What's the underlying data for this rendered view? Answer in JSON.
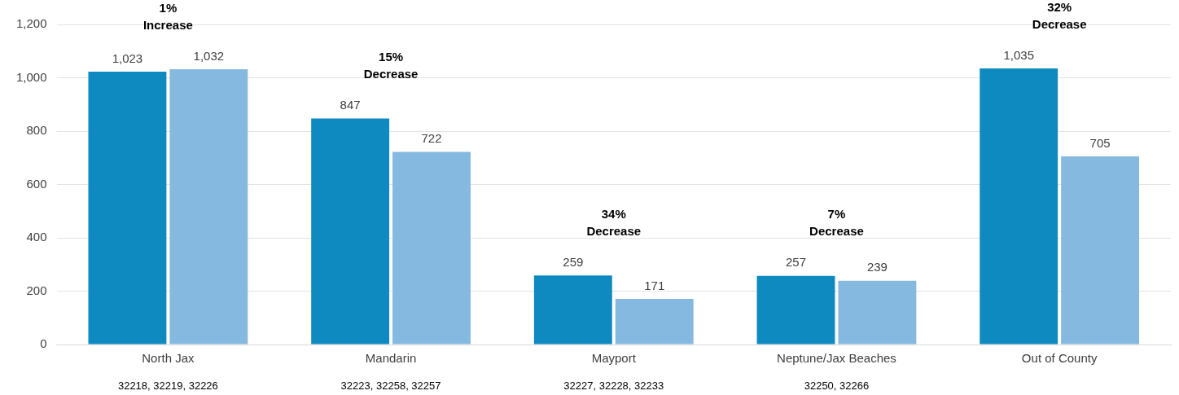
{
  "chart_data": {
    "type": "bar",
    "categories": [
      "North Jax",
      "Mandarin",
      "Mayport",
      "Neptune/Jax Beaches",
      "Out of County"
    ],
    "series": [
      {
        "color": "#0e8ac0",
        "values": [
          1023,
          847,
          259,
          257,
          1035
        ],
        "value_labels": [
          "1,023",
          "847",
          "259",
          "257",
          "1,035"
        ]
      },
      {
        "color": "#86b9df",
        "values": [
          1032,
          722,
          171,
          239,
          705
        ],
        "value_labels": [
          "1,032",
          "722",
          "171",
          "239",
          "705"
        ]
      }
    ],
    "ylim": [
      0,
      1200
    ],
    "yticks": [
      0,
      200,
      400,
      600,
      800,
      {
        "value": 1000,
        "label": "1,000"
      },
      {
        "value": 1200,
        "label": "1,200"
      }
    ],
    "grid": "y",
    "legend": false,
    "annotations": [
      "1%\nIncrease",
      "15%\nDecrease",
      "34%\nDecrease",
      "7%\nDecrease",
      "32%\nDecrease",
      "32218, 32219, 32226",
      "32223, 32258, 32257",
      "32227, 32228, 32233",
      "32250, 32266"
    ]
  }
}
